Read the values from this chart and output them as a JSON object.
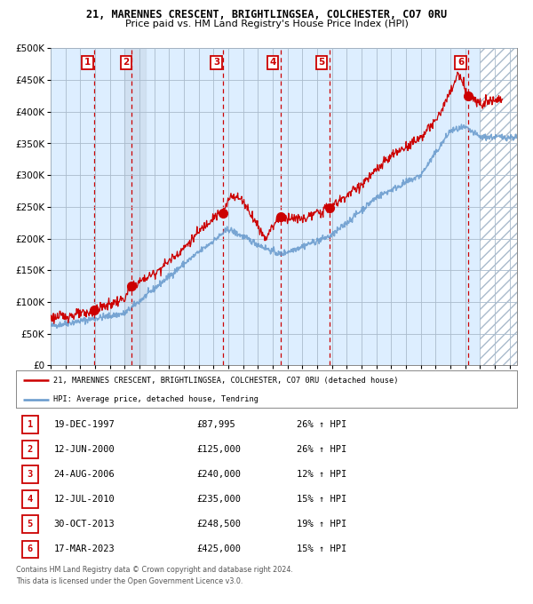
{
  "title1": "21, MARENNES CRESCENT, BRIGHTLINGSEA, COLCHESTER, CO7 0RU",
  "title2": "Price paid vs. HM Land Registry's House Price Index (HPI)",
  "ylim": [
    0,
    500000
  ],
  "xlim_start": 1995.0,
  "xlim_end": 2026.5,
  "yticks": [
    0,
    50000,
    100000,
    150000,
    200000,
    250000,
    300000,
    350000,
    400000,
    450000,
    500000
  ],
  "ytick_labels": [
    "£0",
    "£50K",
    "£100K",
    "£150K",
    "£200K",
    "£250K",
    "£300K",
    "£350K",
    "£400K",
    "£450K",
    "£500K"
  ],
  "sale_color": "#cc0000",
  "hpi_color": "#6699cc",
  "plot_bg": "#ddeeff",
  "grid_color": "#aabbcc",
  "sale_dates_x": [
    1997.96,
    2000.44,
    2006.64,
    2010.53,
    2013.83,
    2023.21
  ],
  "sale_prices_y": [
    87995,
    125000,
    240000,
    235000,
    248500,
    425000
  ],
  "sale_labels": [
    "1",
    "2",
    "3",
    "4",
    "5",
    "6"
  ],
  "sale_label_date_x": [
    1997.5,
    2000.1,
    2006.2,
    2010.0,
    2013.3,
    2022.7
  ],
  "legend_line1": "21, MARENNES CRESCENT, BRIGHTLINGSEA, COLCHESTER, CO7 0RU (detached house)",
  "legend_line2": "HPI: Average price, detached house, Tendring",
  "table_rows": [
    [
      "1",
      "19-DEC-1997",
      "£87,995",
      "26% ↑ HPI"
    ],
    [
      "2",
      "12-JUN-2000",
      "£125,000",
      "26% ↑ HPI"
    ],
    [
      "3",
      "24-AUG-2006",
      "£240,000",
      "12% ↑ HPI"
    ],
    [
      "4",
      "12-JUL-2010",
      "£235,000",
      "15% ↑ HPI"
    ],
    [
      "5",
      "30-OCT-2013",
      "£248,500",
      "19% ↑ HPI"
    ],
    [
      "6",
      "17-MAR-2023",
      "£425,000",
      "15% ↑ HPI"
    ]
  ],
  "footnote1": "Contains HM Land Registry data © Crown copyright and database right 2024.",
  "footnote2": "This data is licensed under the Open Government Licence v3.0.",
  "hatched_region_start": 2024.0,
  "hatched_region_end": 2026.5,
  "shaded_region_start": 1999.96,
  "shaded_region_end": 2001.44
}
